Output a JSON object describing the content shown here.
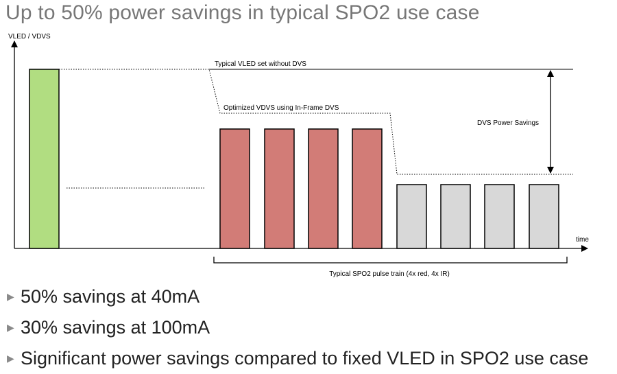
{
  "title": "Up to 50% power savings in typical SPO2 use case",
  "colors": {
    "green_pulse": "#b1dd81",
    "red_pulse": "#d27c77",
    "ir_pulse": "#d8d8d8",
    "line": "#000000"
  },
  "diagram": {
    "y_axis_label": "VLED / VDVS",
    "x_axis_label": "time",
    "vled_label": "Typical VLED set without DVS",
    "vdvs_label": "Optimized VDVS using In-Frame DVS",
    "savings_label": "DVS Power Savings",
    "pulse_train_label": "Typical SPO2 pulse train (4x red, 4x IR)",
    "red_pulse_count": 4,
    "ir_pulse_count": 4
  },
  "bullets": [
    "50% savings at 40mA",
    "30% savings  at 100mA",
    "Significant power savings compared to fixed VLED in SPO2 use case"
  ],
  "bullet_icon": "triangle-right-icon"
}
